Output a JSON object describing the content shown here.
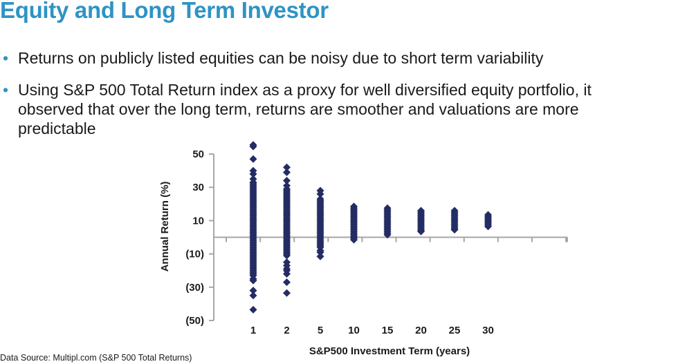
{
  "slide": {
    "title": "Equity and Long Term Investor",
    "bullets": [
      "Returns on publicly listed equities can be noisy due to short term variability",
      "Using S&P 500 Total Return index as a proxy for well diversified equity portfolio, it\nobserved that over the long term, returns are smoother and valuations are more\npredictable"
    ],
    "bullet_marker": "•",
    "source": "Data Source: Multipl.com (S&P 500 Total Returns)"
  },
  "colors": {
    "accent": "#2e93c5",
    "marker": "#232c63",
    "axis": "#a6a6a6"
  },
  "chart_data": {
    "type": "scatter",
    "xlabel": "S&P500 Investment Term (years)",
    "ylabel": "Annual Return (%)",
    "ylim": [
      -50,
      50
    ],
    "ytick_values": [
      50,
      30,
      10,
      -10,
      -30,
      -50
    ],
    "ytick_labels": [
      "50",
      "30",
      "10",
      "(10)",
      "(30)",
      "(50)"
    ],
    "categories": [
      "1",
      "2",
      "5",
      "10",
      "15",
      "20",
      "25",
      "30"
    ],
    "grid": false,
    "legend": "none",
    "series": [
      {
        "values": [
          [
            55.5,
            54.5,
            47,
            40,
            38,
            35,
            33,
            32,
            31,
            30,
            29,
            28,
            27,
            26,
            25,
            24,
            23,
            22,
            21,
            20,
            19,
            18,
            17,
            16,
            15,
            14,
            13,
            12,
            11,
            10,
            9,
            8,
            7,
            6,
            5,
            4,
            3,
            2,
            1,
            0,
            -1,
            -2,
            -3,
            -4,
            -5,
            -6,
            -7,
            -8,
            -9,
            -10,
            -11,
            -12,
            -13,
            -14,
            -15,
            -16,
            -17,
            -18,
            -19,
            -20,
            -21,
            -22,
            -23,
            -25,
            -26,
            -32,
            -35,
            -43.5
          ],
          [
            42,
            39,
            34,
            31,
            29,
            28,
            27,
            26,
            25,
            24,
            23,
            22,
            21,
            20,
            19,
            18,
            17,
            16,
            15,
            14,
            13,
            12,
            11,
            10,
            9,
            8,
            7,
            6,
            5,
            4,
            3,
            2,
            1,
            0,
            -1,
            -2,
            -3,
            -4,
            -5,
            -6,
            -7,
            -8,
            -9,
            -10,
            -11,
            -15,
            -17,
            -19,
            -20,
            -22,
            -27,
            -33.5
          ],
          [
            28,
            26,
            23,
            22,
            21,
            20,
            19,
            18,
            17,
            16,
            15,
            14,
            13,
            12,
            11,
            10,
            9,
            8,
            7,
            6,
            5,
            4,
            3,
            2,
            1,
            0,
            -1,
            -2,
            -3,
            -4,
            -5,
            -6,
            -8,
            -9,
            -11.5
          ],
          [
            18.5,
            17.5,
            16.5,
            15.5,
            14.5,
            13.5,
            12.5,
            11.5,
            10.5,
            9.5,
            8.5,
            7.5,
            6.5,
            5.5,
            4.5,
            3.5,
            2.5,
            1.5,
            0.5,
            -0.5,
            -1.5
          ],
          [
            17.5,
            16.5,
            15.5,
            14.5,
            13.5,
            12.5,
            11.5,
            10.5,
            9.5,
            8.5,
            7.5,
            6.5,
            5.5,
            4.5,
            3.5,
            2.5,
            1.5
          ],
          [
            16,
            15,
            14,
            13,
            12,
            11,
            10,
            9,
            8,
            7,
            6,
            5,
            4,
            3.5
          ],
          [
            16,
            15,
            14,
            13,
            12,
            11,
            10,
            9,
            8,
            7,
            6,
            5,
            4.5
          ],
          [
            13.5,
            12.5,
            11.5,
            10.5,
            9.5,
            8.5,
            7.5,
            6.5
          ]
        ]
      }
    ]
  }
}
